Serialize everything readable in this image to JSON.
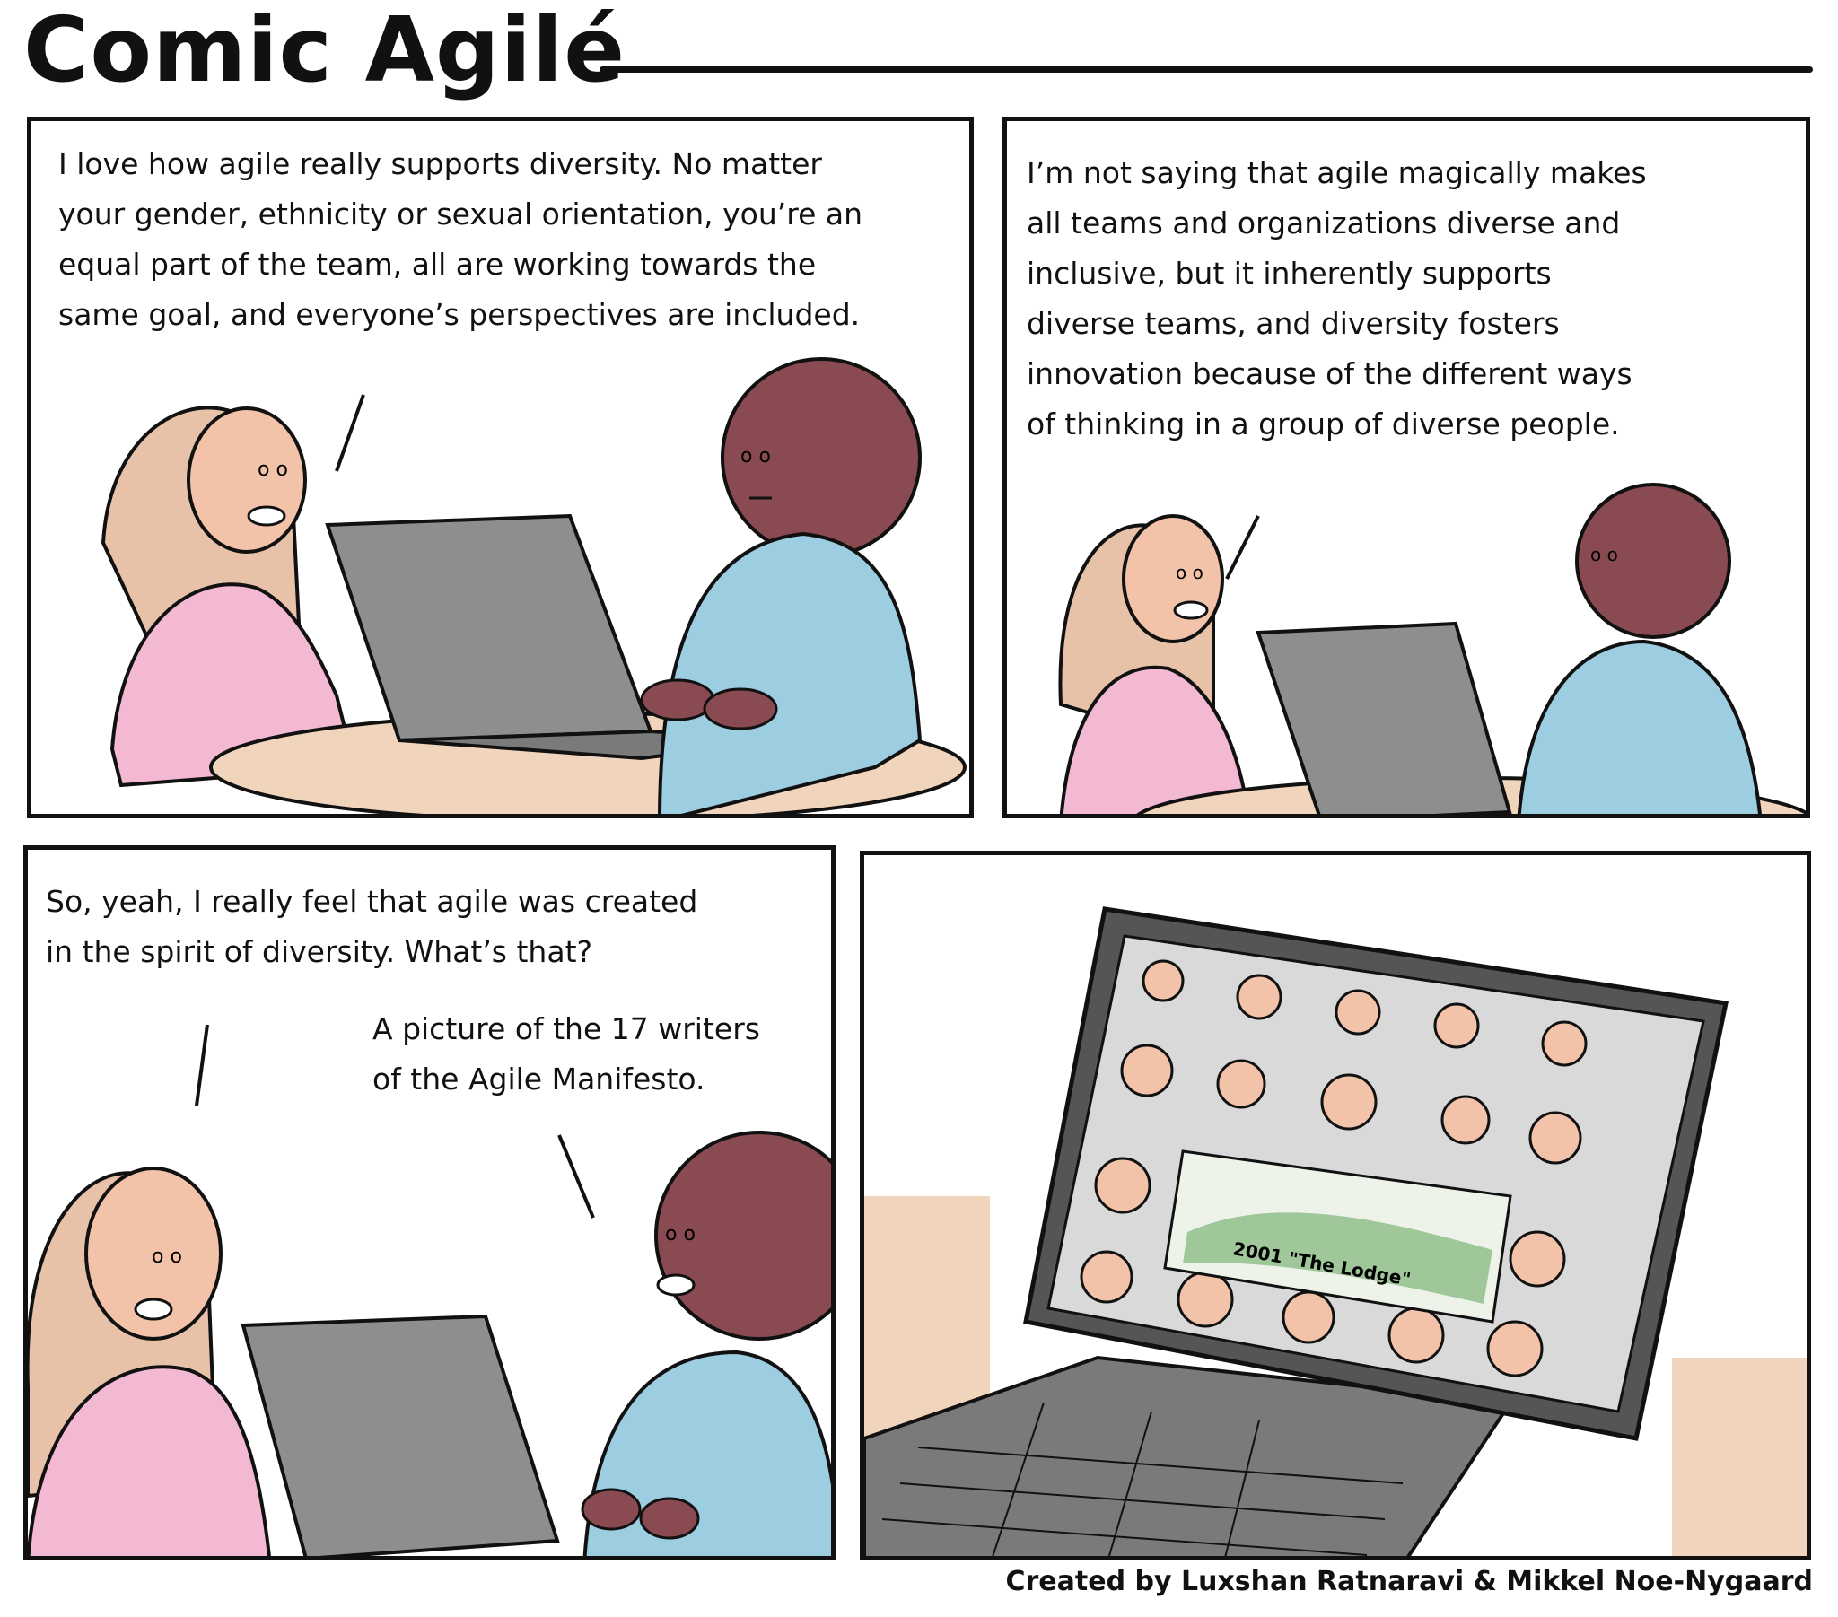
{
  "header": {
    "title": "Comic Agilé"
  },
  "panels": [
    {
      "caption": "I love how agile really supports diversity. No matter\nyour gender, ethnicity or sexual orientation, you’re an\nequal part of the team, all are working towards the\nsame goal, and everyone’s perspectives are included."
    },
    {
      "caption": "I’m not saying that agile magically makes\nall teams and organizations diverse and\ninclusive, but it inherently supports\ndiverse teams, and diversity fosters\ninnovation because of the different ways\nof thinking in a group of diverse people."
    },
    {
      "caption": "So, yeah, I really feel that agile was created\nin the spirit of diversity. What’s that?",
      "reply": "A picture of the 17 writers\nof the Agile Manifesto."
    },
    {
      "screen_label": "2001 \"The Lodge\""
    }
  ],
  "footer": {
    "credit": "Created by Luxshan Ratnaravi & Mikkel Noe-Nygaard"
  },
  "colors": {
    "pink_shirt": "#f4b9d2",
    "blue_shirt": "#9dcde0",
    "skin_light": "#f2c3a8",
    "skin_dark": "#8a4a52",
    "hair": "#e8c2a8",
    "laptop": "#8e8e8e",
    "table": "#f1d4bc"
  }
}
